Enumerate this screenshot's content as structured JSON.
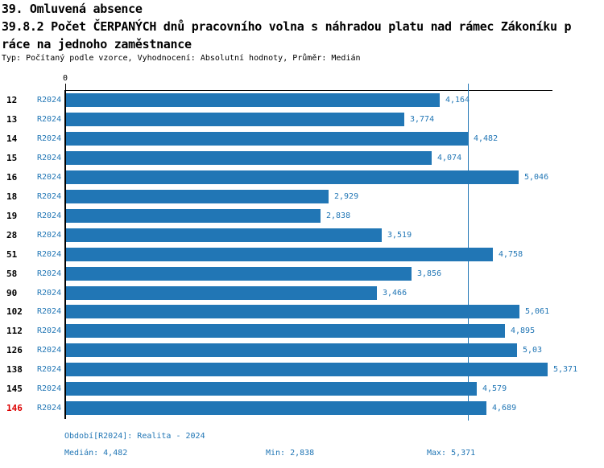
{
  "header": {
    "title": "39. Omluvená absence",
    "subtitle_line1": "39.8.2 Počet ČERPANÝCH dnů pracovního volna s náhradou platu nad rámec Zákoníku p",
    "subtitle_line2": "ráce na jednoho zaměstnance",
    "meta": "Typ: Počítaný podle vzorce, Vyhodnocení: Absolutní hodnoty, Průměr: Medián"
  },
  "chart_data": {
    "type": "bar",
    "orientation": "horizontal",
    "title": "39.8.2 Počet ČERPANÝCH dnů pracovního volna s náhradou platu nad rámec Zákoníku práce na jednoho zaměstnance",
    "categories": [
      "12",
      "13",
      "14",
      "15",
      "16",
      "18",
      "19",
      "28",
      "51",
      "58",
      "90",
      "102",
      "112",
      "126",
      "138",
      "145",
      "146"
    ],
    "series_label": "R2024",
    "values": [
      4.164,
      3.774,
      4.482,
      4.074,
      5.046,
      2.929,
      2.838,
      3.519,
      4.758,
      3.856,
      3.466,
      5.061,
      4.895,
      5.03,
      5.371,
      4.579,
      4.689
    ],
    "value_labels": [
      "4,164",
      "3,774",
      "4,482",
      "4,074",
      "5,046",
      "2,929",
      "2,838",
      "3,519",
      "4,758",
      "3,856",
      "3,466",
      "5,061",
      "4,895",
      "5,03",
      "5,371",
      "4,579",
      "4,689"
    ],
    "axis_zero_label": "0",
    "xlim": [
      0,
      5.42
    ],
    "median_value": 4.482,
    "highlighted_category": "146",
    "grid": "median-reference-line-only",
    "legend_position": "none",
    "colors": {
      "bar": "#2176b5",
      "label_blue": "#2176b5",
      "highlight_red": "#dc0000",
      "axis_black": "#000000"
    }
  },
  "footer": {
    "period": "Období[R2024]: Realita - 2024",
    "median": "Medián: 4,482",
    "min": "Min: 2,838",
    "max": "Max: 5,371"
  }
}
